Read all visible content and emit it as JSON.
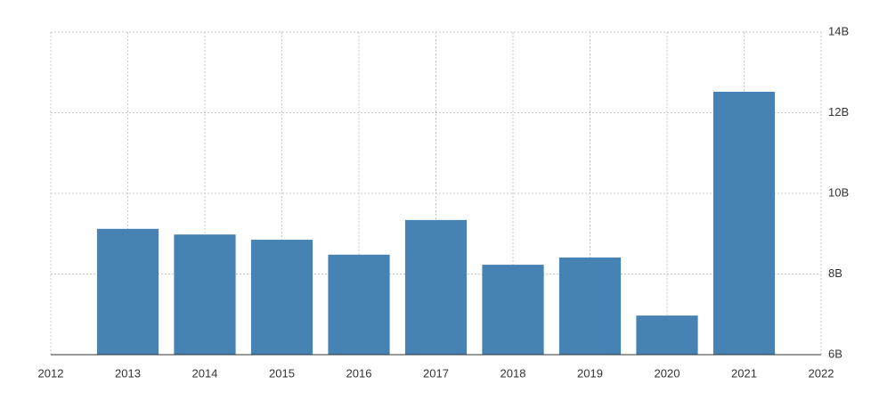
{
  "chart_data": {
    "type": "bar",
    "x": [
      2013,
      2014,
      2015,
      2016,
      2017,
      2018,
      2019,
      2020,
      2021
    ],
    "values": [
      9.12,
      8.98,
      8.85,
      8.48,
      9.34,
      8.23,
      8.41,
      6.97,
      12.52
    ],
    "color": "#4682b4",
    "xlim": [
      2012,
      2022
    ],
    "xticks": [
      2012,
      2013,
      2014,
      2015,
      2016,
      2017,
      2018,
      2019,
      2020,
      2021,
      2022
    ],
    "ylim": [
      6,
      14
    ],
    "yticks": [
      {
        "value": 6,
        "label": "6B"
      },
      {
        "value": 8,
        "label": "8B"
      },
      {
        "value": 10,
        "label": "10B"
      },
      {
        "value": 12,
        "label": "12B"
      },
      {
        "value": 14,
        "label": "14B"
      }
    ],
    "grid": true
  }
}
